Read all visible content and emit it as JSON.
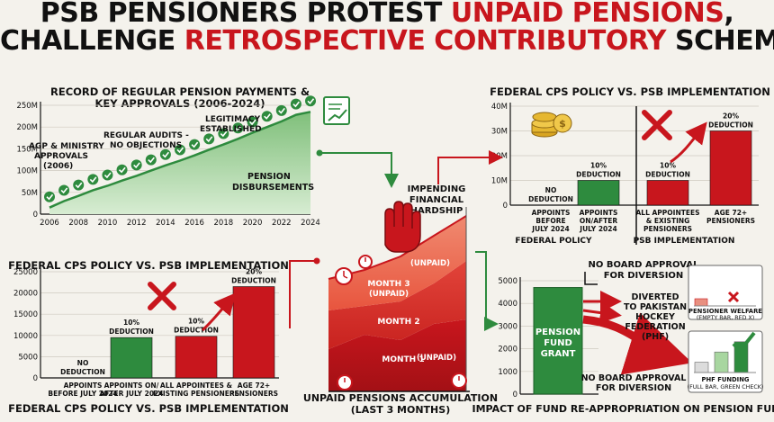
{
  "headline": {
    "line1_a": "PSB PENSIONERS PROTEST ",
    "line1_b": "UNPAID PENSIONS",
    "line1_c": ",",
    "line2_a": "CHALLENGE ",
    "line2_b": "RETROSPECTIVE CONTRIBUTORY",
    "line2_c": " SCHEME"
  },
  "colors": {
    "green": "#2e8b3e",
    "red": "#c8161d",
    "darkred": "#8e1015",
    "ink": "#111111"
  },
  "chart_data": [
    {
      "id": "pension-record",
      "type": "area",
      "title": "RECORD OF REGULAR PENSION PAYMENTS & KEY APPROVALS (2006-2024)",
      "title_line1": "RECORD OF REGULAR PENSION PAYMENTS &",
      "title_line2": "KEY APPROVALS (2006-2024)",
      "x": [
        2006,
        2007,
        2008,
        2009,
        2010,
        2011,
        2012,
        2013,
        2014,
        2015,
        2016,
        2017,
        2018,
        2019,
        2020,
        2021,
        2022,
        2023,
        2024
      ],
      "values": [
        15,
        30,
        42,
        55,
        65,
        77,
        88,
        100,
        112,
        123,
        135,
        148,
        160,
        173,
        187,
        200,
        213,
        228,
        235
      ],
      "x_ticks": [
        "2006",
        "2008",
        "2010",
        "2012",
        "2014",
        "2016",
        "2018",
        "2020",
        "2022",
        "2024"
      ],
      "y_ticks": [
        "0",
        "50M",
        "100M",
        "150M",
        "200M",
        "250M"
      ],
      "ylim": [
        0,
        250
      ],
      "series_label_1": "PENSION",
      "series_label_2": "DISBURSEMENTS",
      "annotations": [
        {
          "l1": "AGP & MINISTRY",
          "l2": "APPROVALS",
          "l3": "(2006)"
        },
        {
          "l1": "REGULAR AUDITS -",
          "l2": "NO OBJECTIONS",
          "l3": ""
        },
        {
          "l1": "LEGITIMACY",
          "l2": "ESTABLISHED",
          "l3": ""
        }
      ]
    },
    {
      "id": "cps-top",
      "type": "bar",
      "title": "FEDERAL CPS POLICY VS. PSB IMPLEMENTATION",
      "y_ticks": [
        "0",
        "10M",
        "20M",
        "30M",
        "40M"
      ],
      "ylim": [
        0,
        40
      ],
      "values": [
        0,
        10,
        10,
        30
      ],
      "cat_lines": [
        [
          "APPOINTS",
          "BEFORE",
          "JULY 2024"
        ],
        [
          "APPOINTS",
          "ON/AFTER",
          "JULY 2024"
        ],
        [
          "ALL APPOINTEES",
          "& EXISTING",
          "PENSIONERS"
        ],
        [
          "AGE 72+",
          "PENSIONERS"
        ]
      ],
      "bar_labels": [
        [
          "NO",
          "DEDUCTION"
        ],
        [
          "10%",
          "DEDUCTION"
        ],
        [
          "10%",
          "DEDUCTION"
        ],
        [
          "20%",
          "DEDUCTION"
        ]
      ],
      "group_labels": [
        "FEDERAL POLICY",
        "PSB IMPLEMENTATION"
      ]
    },
    {
      "id": "cps-bottom",
      "type": "bar",
      "title": "FEDERAL CPS POLICY VS. PSB IMPLEMENTATION",
      "footer": "FEDERAL CPS POLICY VS. PSB IMPLEMENTATION",
      "y_ticks": [
        "0",
        "5000",
        "10000",
        "15000",
        "20000",
        "25000"
      ],
      "ylim": [
        0,
        25000
      ],
      "values": [
        0,
        9500,
        9800,
        21500
      ],
      "cat_lines": [
        [
          "APPOINTS",
          "BEFORE JULY 2024"
        ],
        [
          "APPOINTS ON/",
          "AFTER JULY 2024"
        ],
        [
          "ALL APPOINTEES &",
          "EXISTING PENSIONERS"
        ],
        [
          "AGE 72+",
          "PENSIONERS"
        ]
      ],
      "bar_labels": [
        [
          "NO",
          "DEDUCTION"
        ],
        [
          "10%",
          "DEDUCTION"
        ],
        [
          "10%",
          "DEDUCTION"
        ],
        [
          "20%",
          "DEDUCTION"
        ]
      ]
    },
    {
      "id": "unpaid",
      "type": "area",
      "title": "UNPAID PENSIONS ACCUMULATION",
      "title_sub": "(LAST 3 MONTHS)",
      "layers": [
        {
          "name": "MONTH 1",
          "tag": "(UNPAID)"
        },
        {
          "name": "MONTH 2",
          "tag": ""
        },
        {
          "name": "MONTH 3",
          "tag": "(UNPAID)"
        }
      ],
      "top_tag": "(UNPAID)",
      "hardship_lines": [
        "IMPENDING",
        "FINANCIAL",
        "HARDSHIP"
      ]
    },
    {
      "id": "fund",
      "type": "bar",
      "title": "IMPACT OF FUND RE-APPROPRIATION ON PENSION FUND",
      "y_ticks": [
        "0",
        "1000",
        "2000",
        "3000",
        "4000",
        "5000"
      ],
      "ylim": [
        0,
        5000
      ],
      "grant_value": 4700,
      "grant_label": [
        "PENSION",
        "FUND",
        "GRANT"
      ],
      "note_top": [
        "NO BOARD APPROVAL",
        "FOR DIVERSION"
      ],
      "note_bottom": [
        "NO BOARD APPROVAL",
        "FOR DIVERSION"
      ],
      "diverted": [
        "DIVERTED",
        "TO PAKISTAN",
        "HOCKEY",
        "FEDERATION",
        "(PHF)"
      ],
      "welfare_label": [
        "PENSIONER WELFARE",
        "(EMPTY BAR, RED X)"
      ],
      "phf_label": [
        "PHF FUNDING",
        "(FULL BAR, GREEN CHECK)"
      ],
      "welfare_values": [
        8,
        0
      ],
      "phf_values": [
        30,
        60,
        90
      ]
    }
  ]
}
